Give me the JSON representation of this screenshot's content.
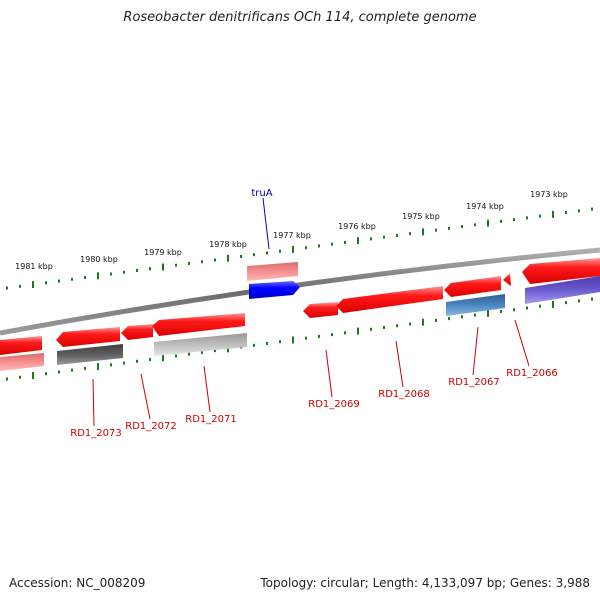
{
  "title": "Roseobacter denitrificans OCh 114, complete genome",
  "footer": {
    "accession": "Accession: NC_008209",
    "summary": "Topology: circular; Length: 4,133,097 bp; Genes: 3,988"
  },
  "scale_labels": [
    "1981 kbp",
    "1980 kbp",
    "1979 kbp",
    "1978 kbp",
    "1977 kbp",
    "1976 kbp",
    "1975 kbp",
    "1974 kbp",
    "1973 kbp"
  ],
  "upper_gene_label": "truA",
  "lower_gene_labels": [
    "RD1_2073",
    "RD1_2072",
    "RD1_2071",
    "RD1_2069",
    "RD1_2068",
    "RD1_2067",
    "RD1_2066"
  ],
  "colors": {
    "backbone": "#7a7a7a",
    "red": "#ff0000",
    "blue": "#0000ff",
    "steel": "#3f7ab5",
    "purple": "#6655cc",
    "dark_gray": "#5a5a5a",
    "light_gray": "#b8b8b8",
    "tick_green": "#1a7a1a",
    "label_red": "#cc0000",
    "label_blue": "#0000aa"
  }
}
